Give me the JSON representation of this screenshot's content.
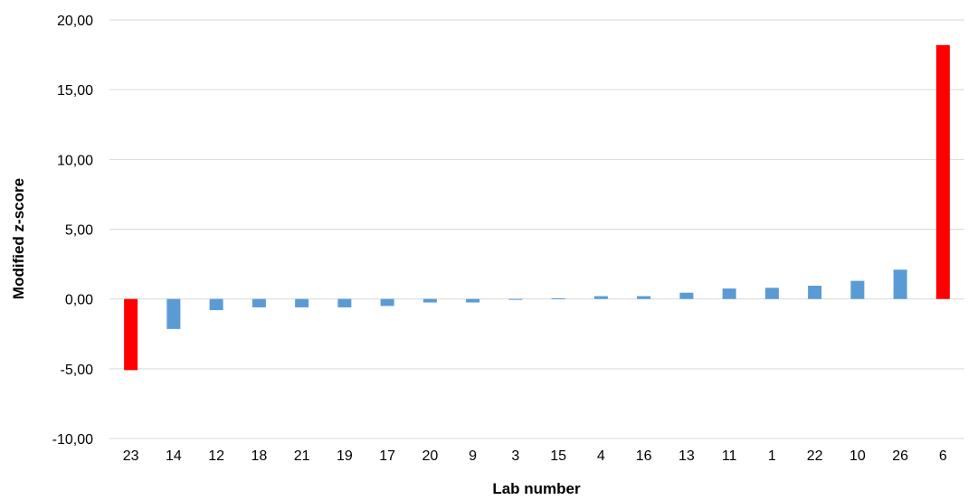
{
  "chart_data": {
    "type": "bar",
    "xlabel": "Lab number",
    "ylabel": "Modified z-score",
    "ylim": [
      -10,
      20
    ],
    "yticks": [
      20,
      15,
      10,
      5,
      0,
      -5,
      -10
    ],
    "ytick_labels": [
      "20,00",
      "15,00",
      "10,00",
      "5,00",
      "0,00",
      "-5,00",
      "-10,00"
    ],
    "grid": true,
    "legend": "none",
    "categories": [
      "23",
      "14",
      "12",
      "18",
      "21",
      "19",
      "17",
      "20",
      "9",
      "3",
      "15",
      "4",
      "16",
      "13",
      "11",
      "1",
      "22",
      "10",
      "26",
      "6"
    ],
    "values": [
      -5.1,
      -2.15,
      -0.8,
      -0.6,
      -0.6,
      -0.6,
      -0.5,
      -0.25,
      -0.25,
      -0.05,
      0.05,
      0.2,
      0.2,
      0.45,
      0.75,
      0.8,
      0.95,
      1.3,
      2.1,
      18.2
    ],
    "colors": {
      "normal": "#5b9bd5",
      "outlier": "#ff0000",
      "grid": "#d9d9d9"
    },
    "outlier_categories": [
      "23",
      "6"
    ]
  }
}
